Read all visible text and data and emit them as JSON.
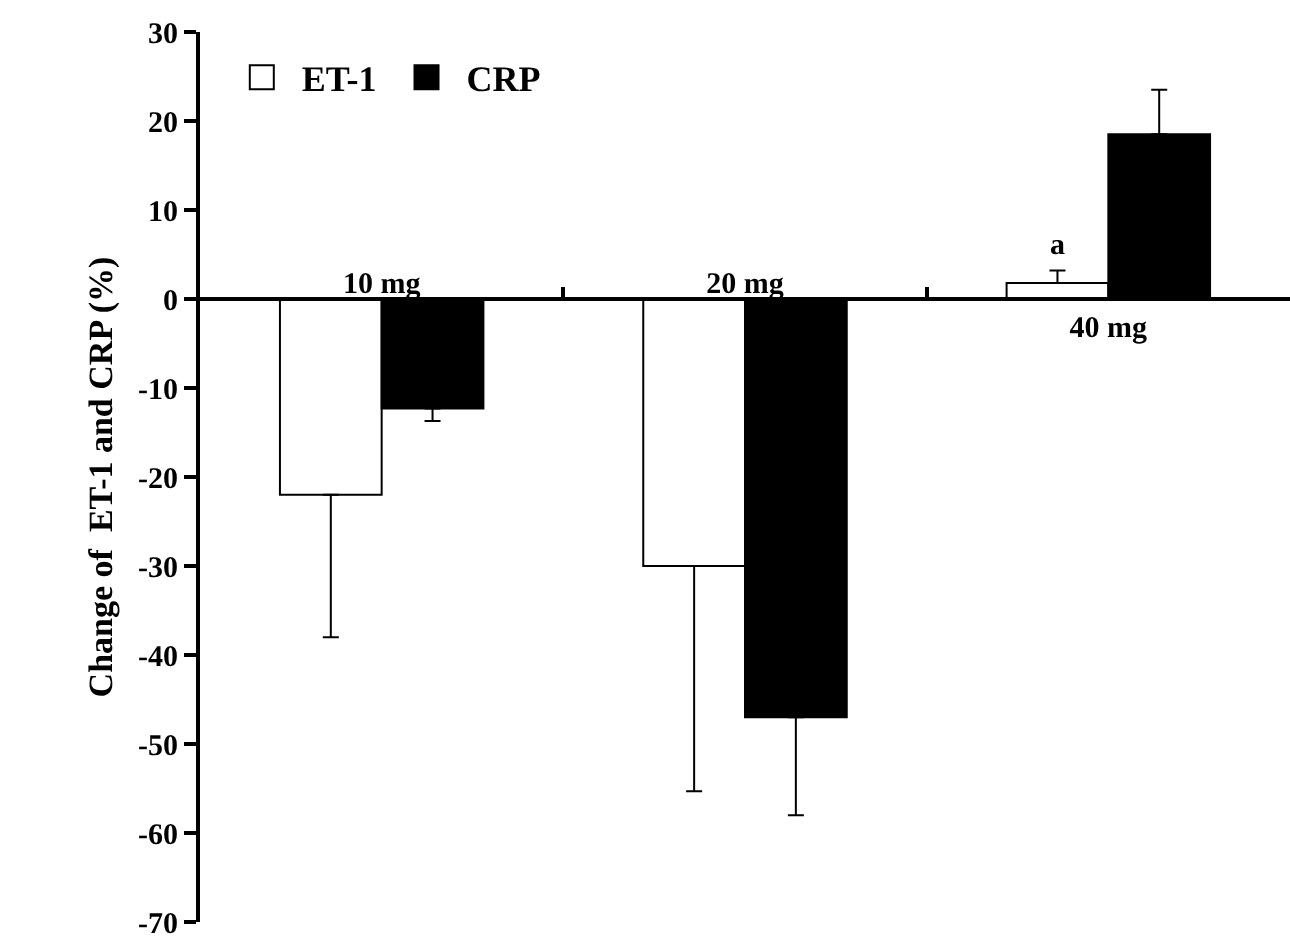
{
  "chart_data": {
    "type": "bar",
    "ylabel": "Change of  ET-1 and CRP (%)",
    "categories": [
      "10 mg",
      "20 mg",
      "40 mg"
    ],
    "series": [
      {
        "name": "ET-1",
        "color": "#ffffff",
        "values": [
          -22,
          -30,
          1.8
        ],
        "errors": [
          [
            -38,
            -22
          ],
          [
            -55.3,
            -30
          ],
          [
            1.8,
            3.2
          ]
        ]
      },
      {
        "name": "CRP",
        "color": "#000000",
        "values": [
          -12.3,
          -47,
          18.5
        ],
        "errors": [
          [
            -13.7,
            -12.3
          ],
          [
            -58,
            -47
          ],
          [
            18.5,
            23.5
          ]
        ]
      }
    ],
    "annotations": [
      {
        "text": "a",
        "x": "40 mg",
        "y": 3.2
      }
    ],
    "ylim": [
      -70,
      30
    ],
    "yticks": [
      -70,
      -60,
      -50,
      -40,
      -30,
      -20,
      -10,
      0,
      10,
      20,
      30
    ],
    "grid": false,
    "legend": "top left"
  }
}
